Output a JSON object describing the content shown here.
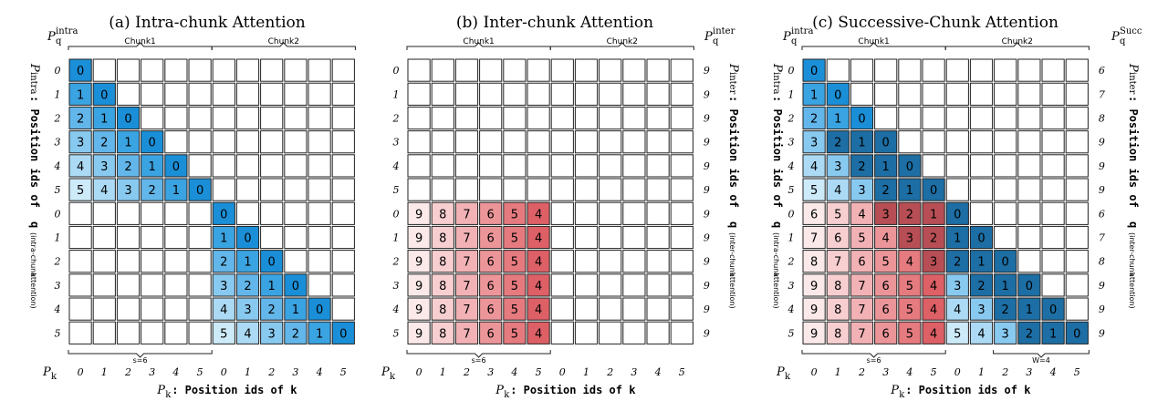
{
  "titles": [
    "(a) Intra-chunk Attention",
    "(b) Inter-chunk Attention",
    "(c) Successive-Chunk Attention"
  ],
  "chunk_labels": [
    "Chunk1",
    "Chunk2"
  ],
  "s_label": "s=6",
  "w_label": "W=4",
  "col_ids": [
    "0",
    "1",
    "2",
    "3",
    "4",
    "5",
    "0",
    "1",
    "2",
    "3",
    "4",
    "5"
  ],
  "row_ids": [
    "0",
    "1",
    "2",
    "3",
    "4",
    "5",
    "0",
    "1",
    "2",
    "3",
    "4",
    "5"
  ],
  "pk_label": "P",
  "pk_sub": "k",
  "bottom_label_suffix": ": Position ids of ",
  "bottom_label_var": "k",
  "panel_a": {
    "top_p": "P",
    "top_sub": "q",
    "top_sup": "intra",
    "left_label_main": ": Position ids of ",
    "left_label_q": "q",
    "left_label_tag": "(intra-chunk",
    "left_label_tag2": " attention)",
    "left_p_sup": "intra",
    "left_p_sub": "q",
    "matrix": [
      [
        "0",
        "",
        "",
        "",
        "",
        "",
        "",
        "",
        "",
        "",
        "",
        ""
      ],
      [
        "1",
        "0",
        "",
        "",
        "",
        "",
        "",
        "",
        "",
        "",
        "",
        ""
      ],
      [
        "2",
        "1",
        "0",
        "",
        "",
        "",
        "",
        "",
        "",
        "",
        "",
        ""
      ],
      [
        "3",
        "2",
        "1",
        "0",
        "",
        "",
        "",
        "",
        "",
        "",
        "",
        ""
      ],
      [
        "4",
        "3",
        "2",
        "1",
        "0",
        "",
        "",
        "",
        "",
        "",
        "",
        ""
      ],
      [
        "5",
        "4",
        "3",
        "2",
        "1",
        "0",
        "",
        "",
        "",
        "",
        "",
        ""
      ],
      [
        "",
        "",
        "",
        "",
        "",
        "",
        "0",
        "",
        "",
        "",
        "",
        ""
      ],
      [
        "",
        "",
        "",
        "",
        "",
        "",
        "1",
        "0",
        "",
        "",
        "",
        ""
      ],
      [
        "",
        "",
        "",
        "",
        "",
        "",
        "2",
        "1",
        "0",
        "",
        "",
        ""
      ],
      [
        "",
        "",
        "",
        "",
        "",
        "",
        "3",
        "2",
        "1",
        "0",
        "",
        ""
      ],
      [
        "",
        "",
        "",
        "",
        "",
        "",
        "4",
        "3",
        "2",
        "1",
        "0",
        ""
      ],
      [
        "",
        "",
        "",
        "",
        "",
        "",
        "5",
        "4",
        "3",
        "2",
        "1",
        "0"
      ]
    ]
  },
  "panel_b": {
    "right_p": "P",
    "right_sub": "q",
    "right_sup": "inter",
    "right_ids": [
      "9",
      "9",
      "9",
      "9",
      "9",
      "9",
      "9",
      "9",
      "9",
      "9",
      "9",
      "9"
    ],
    "right_label_main": ": Position ids of ",
    "right_label_q": "q",
    "right_label_tag": "(inter-chunk",
    "right_label_tag2": " attention)",
    "right_p_sup": "inter",
    "right_p_sub": "q",
    "matrix": [
      [
        "",
        "",
        "",
        "",
        "",
        "",
        "",
        "",
        "",
        "",
        "",
        ""
      ],
      [
        "",
        "",
        "",
        "",
        "",
        "",
        "",
        "",
        "",
        "",
        "",
        ""
      ],
      [
        "",
        "",
        "",
        "",
        "",
        "",
        "",
        "",
        "",
        "",
        "",
        ""
      ],
      [
        "",
        "",
        "",
        "",
        "",
        "",
        "",
        "",
        "",
        "",
        "",
        ""
      ],
      [
        "",
        "",
        "",
        "",
        "",
        "",
        "",
        "",
        "",
        "",
        "",
        ""
      ],
      [
        "",
        "",
        "",
        "",
        "",
        "",
        "",
        "",
        "",
        "",
        "",
        ""
      ],
      [
        "9",
        "8",
        "7",
        "6",
        "5",
        "4",
        "",
        "",
        "",
        "",
        "",
        ""
      ],
      [
        "9",
        "8",
        "7",
        "6",
        "5",
        "4",
        "",
        "",
        "",
        "",
        "",
        ""
      ],
      [
        "9",
        "8",
        "7",
        "6",
        "5",
        "4",
        "",
        "",
        "",
        "",
        "",
        ""
      ],
      [
        "9",
        "8",
        "7",
        "6",
        "5",
        "4",
        "",
        "",
        "",
        "",
        "",
        ""
      ],
      [
        "9",
        "8",
        "7",
        "6",
        "5",
        "4",
        "",
        "",
        "",
        "",
        "",
        ""
      ],
      [
        "9",
        "8",
        "7",
        "6",
        "5",
        "4",
        "",
        "",
        "",
        "",
        "",
        ""
      ]
    ]
  },
  "panel_c": {
    "top_p": "P",
    "top_sub": "q",
    "top_sup": "intra",
    "right_p": "P",
    "right_sub": "q",
    "right_sup": "Succ",
    "right_ids": [
      "6",
      "7",
      "8",
      "9",
      "9",
      "9",
      "6",
      "7",
      "8",
      "9",
      "9",
      "9"
    ],
    "matrix": [
      [
        "0",
        "",
        "",
        "",
        "",
        "",
        "",
        "",
        "",
        "",
        "",
        ""
      ],
      [
        "1",
        "0",
        "",
        "",
        "",
        "",
        "",
        "",
        "",
        "",
        "",
        ""
      ],
      [
        "2",
        "1",
        "0",
        "",
        "",
        "",
        "",
        "",
        "",
        "",
        "",
        ""
      ],
      [
        "3",
        "2",
        "1",
        "0",
        "",
        "",
        "",
        "",
        "",
        "",
        "",
        ""
      ],
      [
        "4",
        "3",
        "2",
        "1",
        "0",
        "",
        "",
        "",
        "",
        "",
        "",
        ""
      ],
      [
        "5",
        "4",
        "3",
        "2",
        "1",
        "0",
        "",
        "",
        "",
        "",
        "",
        ""
      ],
      [
        "6",
        "5",
        "4",
        "3",
        "2",
        "1",
        "0",
        "",
        "",
        "",
        "",
        ""
      ],
      [
        "7",
        "6",
        "5",
        "4",
        "3",
        "2",
        "1",
        "0",
        "",
        "",
        "",
        ""
      ],
      [
        "8",
        "7",
        "6",
        "5",
        "4",
        "3",
        "2",
        "1",
        "0",
        "",
        "",
        ""
      ],
      [
        "9",
        "8",
        "7",
        "6",
        "5",
        "4",
        "3",
        "2",
        "1",
        "0",
        "",
        ""
      ],
      [
        "9",
        "8",
        "7",
        "6",
        "5",
        "4",
        "4",
        "3",
        "2",
        "1",
        "0",
        ""
      ],
      [
        "9",
        "8",
        "7",
        "6",
        "5",
        "4",
        "5",
        "4",
        "3",
        "2",
        "1",
        "0"
      ]
    ]
  },
  "colors": {
    "blue_scale": [
      "#1a8fd8",
      "#3aa3e2",
      "#62b6ea",
      "#88c9f0",
      "#acdaf5",
      "#cdeaf9"
    ],
    "red_scale": [
      "#fbe9ea",
      "#f7cfd1",
      "#f2b2b5",
      "#ec9599",
      "#e57a7f",
      "#dd6066"
    ],
    "dark_blue": "#1c6ea4",
    "dark_red": "#b84e55",
    "blue_text": "#1aa0d8",
    "red_text": "#d03a3a"
  }
}
